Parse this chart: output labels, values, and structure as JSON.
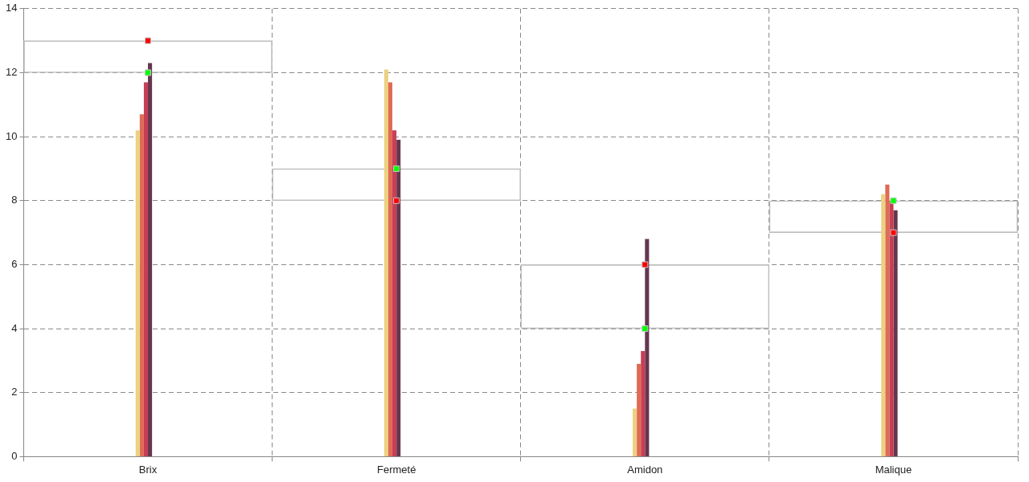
{
  "chart_data": {
    "type": "bar",
    "categories": [
      "Brix",
      "Fermeté",
      "Amidon",
      "Malique"
    ],
    "ylim": [
      0,
      14
    ],
    "yticks": [
      0,
      2,
      4,
      6,
      8,
      10,
      12,
      14
    ],
    "grid": true,
    "legend": false,
    "series": [
      {
        "type": "bar",
        "color": "#c0c0c0",
        "base": [
          12,
          8,
          4,
          7
        ],
        "values": [
          1,
          1,
          2,
          1
        ]
      },
      {
        "color": "#ecd182",
        "values": [
          10.2,
          12.1,
          1.5,
          8.2
        ]
      },
      {
        "color": "#df6b55",
        "values": [
          10.7,
          11.7,
          2.9,
          8.5
        ]
      },
      {
        "color": "#c63f55",
        "values": [
          11.7,
          10.2,
          3.3,
          8.0
        ]
      },
      {
        "color": "#65364e",
        "values": [
          12.3,
          9.9,
          6.8,
          7.7
        ]
      },
      {
        "type": "scatter",
        "marker": "square",
        "color": "#00ff00",
        "x": [
          "Brix",
          "Fermeté",
          "Amidon",
          "Malique"
        ],
        "values": [
          12,
          9,
          4,
          8
        ]
      },
      {
        "type": "scatter",
        "marker": "square",
        "color": "#ff0000",
        "x": [
          "Brix",
          "Fermeté",
          "Amidon",
          "Malique"
        ],
        "values": [
          13,
          8,
          6,
          7
        ]
      }
    ]
  }
}
